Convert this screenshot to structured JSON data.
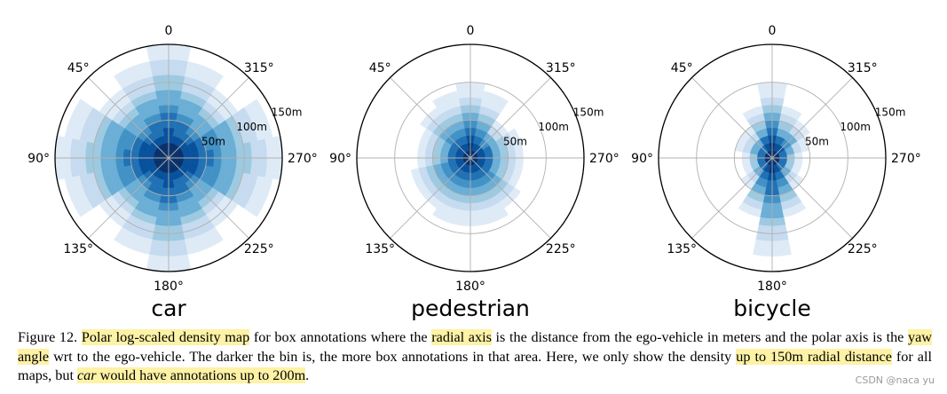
{
  "chart_data": [
    {
      "type": "polar-histogram",
      "title": "car",
      "angle_ticks": [
        "0",
        "45°",
        "90°",
        "135°",
        "180°",
        "225°",
        "270°",
        "315°"
      ],
      "radial_ticks": [
        "50m",
        "100m",
        "150m"
      ],
      "rlim": [
        0,
        150
      ],
      "sectors": 16,
      "extent_m": [
        150,
        128,
        108,
        138,
        150,
        138,
        108,
        128,
        150,
        128,
        108,
        138,
        150,
        138,
        108,
        128
      ]
    },
    {
      "type": "polar-histogram",
      "title": "pedestrian",
      "angle_ticks": [
        "0",
        "45°",
        "90°",
        "135°",
        "180°",
        "225°",
        "270°",
        "315°"
      ],
      "radial_ticks": [
        "50m",
        "100m",
        "150m"
      ],
      "rlim": [
        0,
        150
      ],
      "sectors": 16,
      "extent_m": [
        95,
        85,
        75,
        72,
        70,
        78,
        78,
        85,
        90,
        92,
        75,
        70,
        70,
        72,
        62,
        85
      ]
    },
    {
      "type": "polar-histogram",
      "title": "bicycle",
      "angle_ticks": [
        "0",
        "45°",
        "90°",
        "135°",
        "180°",
        "225°",
        "270°",
        "315°"
      ],
      "radial_ticks": [
        "50m",
        "100m",
        "150m"
      ],
      "rlim": [
        0,
        150
      ],
      "sectors": 16,
      "extent_m": [
        95,
        65,
        45,
        45,
        38,
        42,
        52,
        78,
        130,
        78,
        52,
        42,
        38,
        45,
        55,
        72
      ]
    }
  ],
  "caption": {
    "label": "Figure 12.",
    "h1": "Polar log-scaled density map",
    "t1": " for box annotations where the ",
    "h2": "radial axis",
    "t2": " is the distance from the ego-vehicle in meters and the polar axis is the ",
    "h3": "yaw angle",
    "t3": " wrt to the ego-vehicle. The darker the bin is, the more box annotations in that area. Here, we only show the density ",
    "h4": "up to 150m radial distance",
    "t4": " for all maps, but ",
    "h5a": "car",
    "h5b": " would have annotations up to 200m",
    "t5": "."
  },
  "watermark": "CSDN @naca yu",
  "colors": {
    "bins": [
      "#08306b",
      "#08519c",
      "#2171b5",
      "#4292c6",
      "#6baed6",
      "#9ecae1",
      "#c6dbef",
      "#deebf7"
    ],
    "highlight": "#fdf2a5",
    "grid": "#b0b0b0"
  }
}
